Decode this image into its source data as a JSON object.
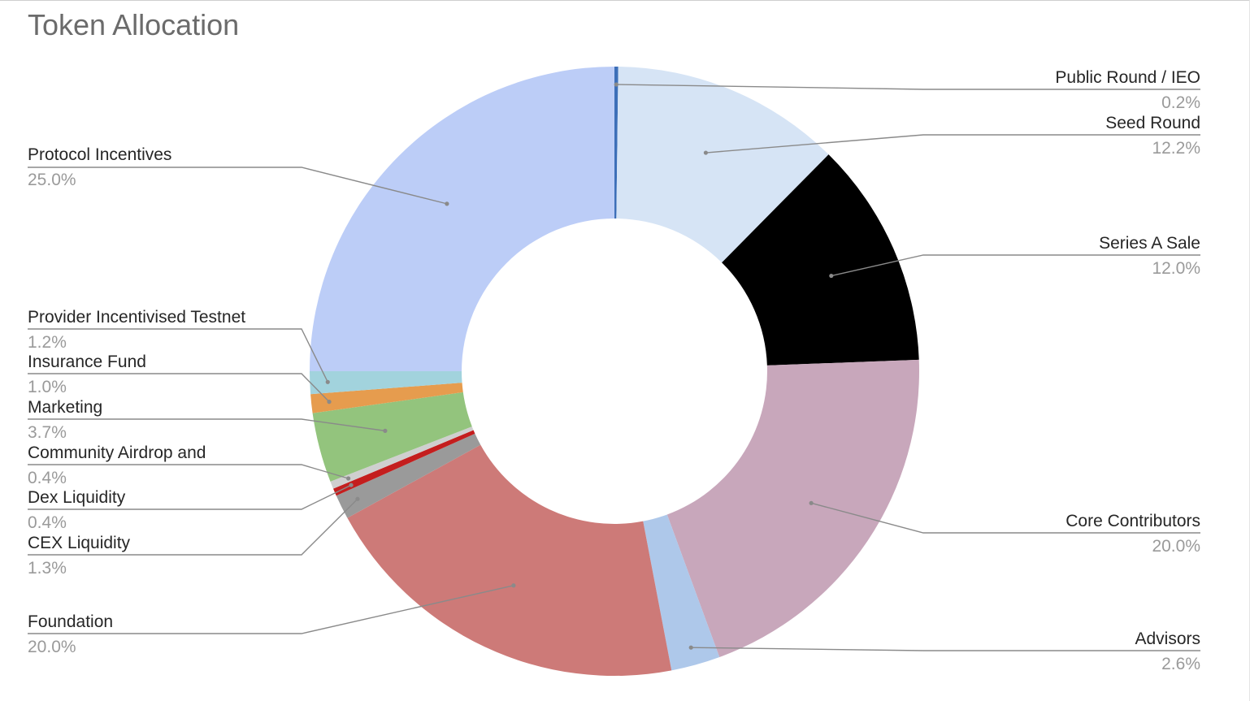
{
  "chart_data": {
    "type": "pie",
    "variant": "donut",
    "title": "Token Allocation",
    "legend": "none",
    "slices": [
      {
        "name": "Public Round / IEO",
        "value": 0.2,
        "label": "0.2%",
        "color": "#3d6fb8"
      },
      {
        "name": "Seed Round",
        "value": 12.2,
        "label": "12.2%",
        "color": "#d6e4f5"
      },
      {
        "name": "Series A Sale",
        "value": 12.0,
        "label": "12.0%",
        "color": "#000000"
      },
      {
        "name": "Core Contributors",
        "value": 20.0,
        "label": "20.0%",
        "color": "#c8a7bb"
      },
      {
        "name": "Advisors",
        "value": 2.6,
        "label": "2.6%",
        "color": "#aec8ea"
      },
      {
        "name": "Foundation",
        "value": 20.0,
        "label": "20.0%",
        "color": "#cd7a78"
      },
      {
        "name": "CEX Liquidity",
        "value": 1.3,
        "label": "1.3%",
        "color": "#9a9a9a"
      },
      {
        "name": "Dex Liquidity",
        "value": 0.4,
        "label": "0.4%",
        "color": "#c41e1e"
      },
      {
        "name": "Community Airdrop and",
        "value": 0.4,
        "label": "0.4%",
        "color": "#cfcfcf"
      },
      {
        "name": "Marketing",
        "value": 3.7,
        "label": "3.7%",
        "color": "#93c47d"
      },
      {
        "name": "Insurance Fund",
        "value": 1.0,
        "label": "1.0%",
        "color": "#e69c4e"
      },
      {
        "name": "Provider Incentivised Testnet",
        "value": 1.2,
        "label": "1.2%",
        "color": "#a2d3dd"
      },
      {
        "name": "Protocol Incentives",
        "value": 25.0,
        "label": "25.0%",
        "color": "#bccdf7"
      }
    ]
  }
}
